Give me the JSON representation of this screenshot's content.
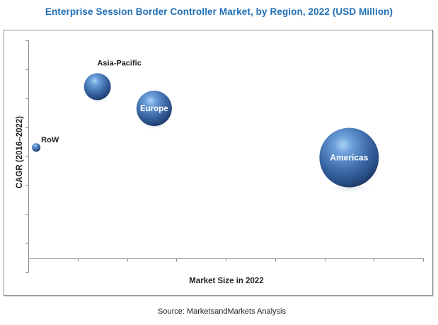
{
  "chart_data": {
    "type": "scatter",
    "subtype": "bubble",
    "title": "Enterprise Session Border Controller Market, by Region, 2022 (USD Million)",
    "xlabel": "Market Size in 2022",
    "ylabel": "CAGR (2016–2022)",
    "source": "Source: MarketsandMarkets Analysis",
    "xlim": [
      0,
      8
    ],
    "ylim": [
      0,
      8
    ],
    "x_axis_crosses_y": 0.47,
    "xticks": [
      0,
      1,
      2,
      3,
      4,
      5,
      6,
      7,
      8
    ],
    "yticks": [
      0,
      1,
      2,
      3,
      4,
      5,
      6,
      7,
      8
    ],
    "tick_labels_shown": false,
    "grid": false,
    "legend": "none",
    "bubble_color": "#3f6fae",
    "bubble_highlight": "#8fbfee",
    "bubble_shadow": "#1c3866",
    "series": [
      {
        "name": "RoW",
        "x": 0.16,
        "y": 4.3,
        "size": 6,
        "label": "RoW",
        "label_position": "above-right"
      },
      {
        "name": "Asia-Pacific",
        "x": 1.4,
        "y": 6.4,
        "size": 19,
        "label": "Asia-Pacific",
        "label_position": "above"
      },
      {
        "name": "Europe",
        "x": 2.55,
        "y": 5.65,
        "size": 25,
        "label": "Europe",
        "label_position": "inside"
      },
      {
        "name": "Americas",
        "x": 6.5,
        "y": 3.95,
        "size": 42,
        "label": "Americas",
        "label_position": "inside"
      }
    ]
  }
}
